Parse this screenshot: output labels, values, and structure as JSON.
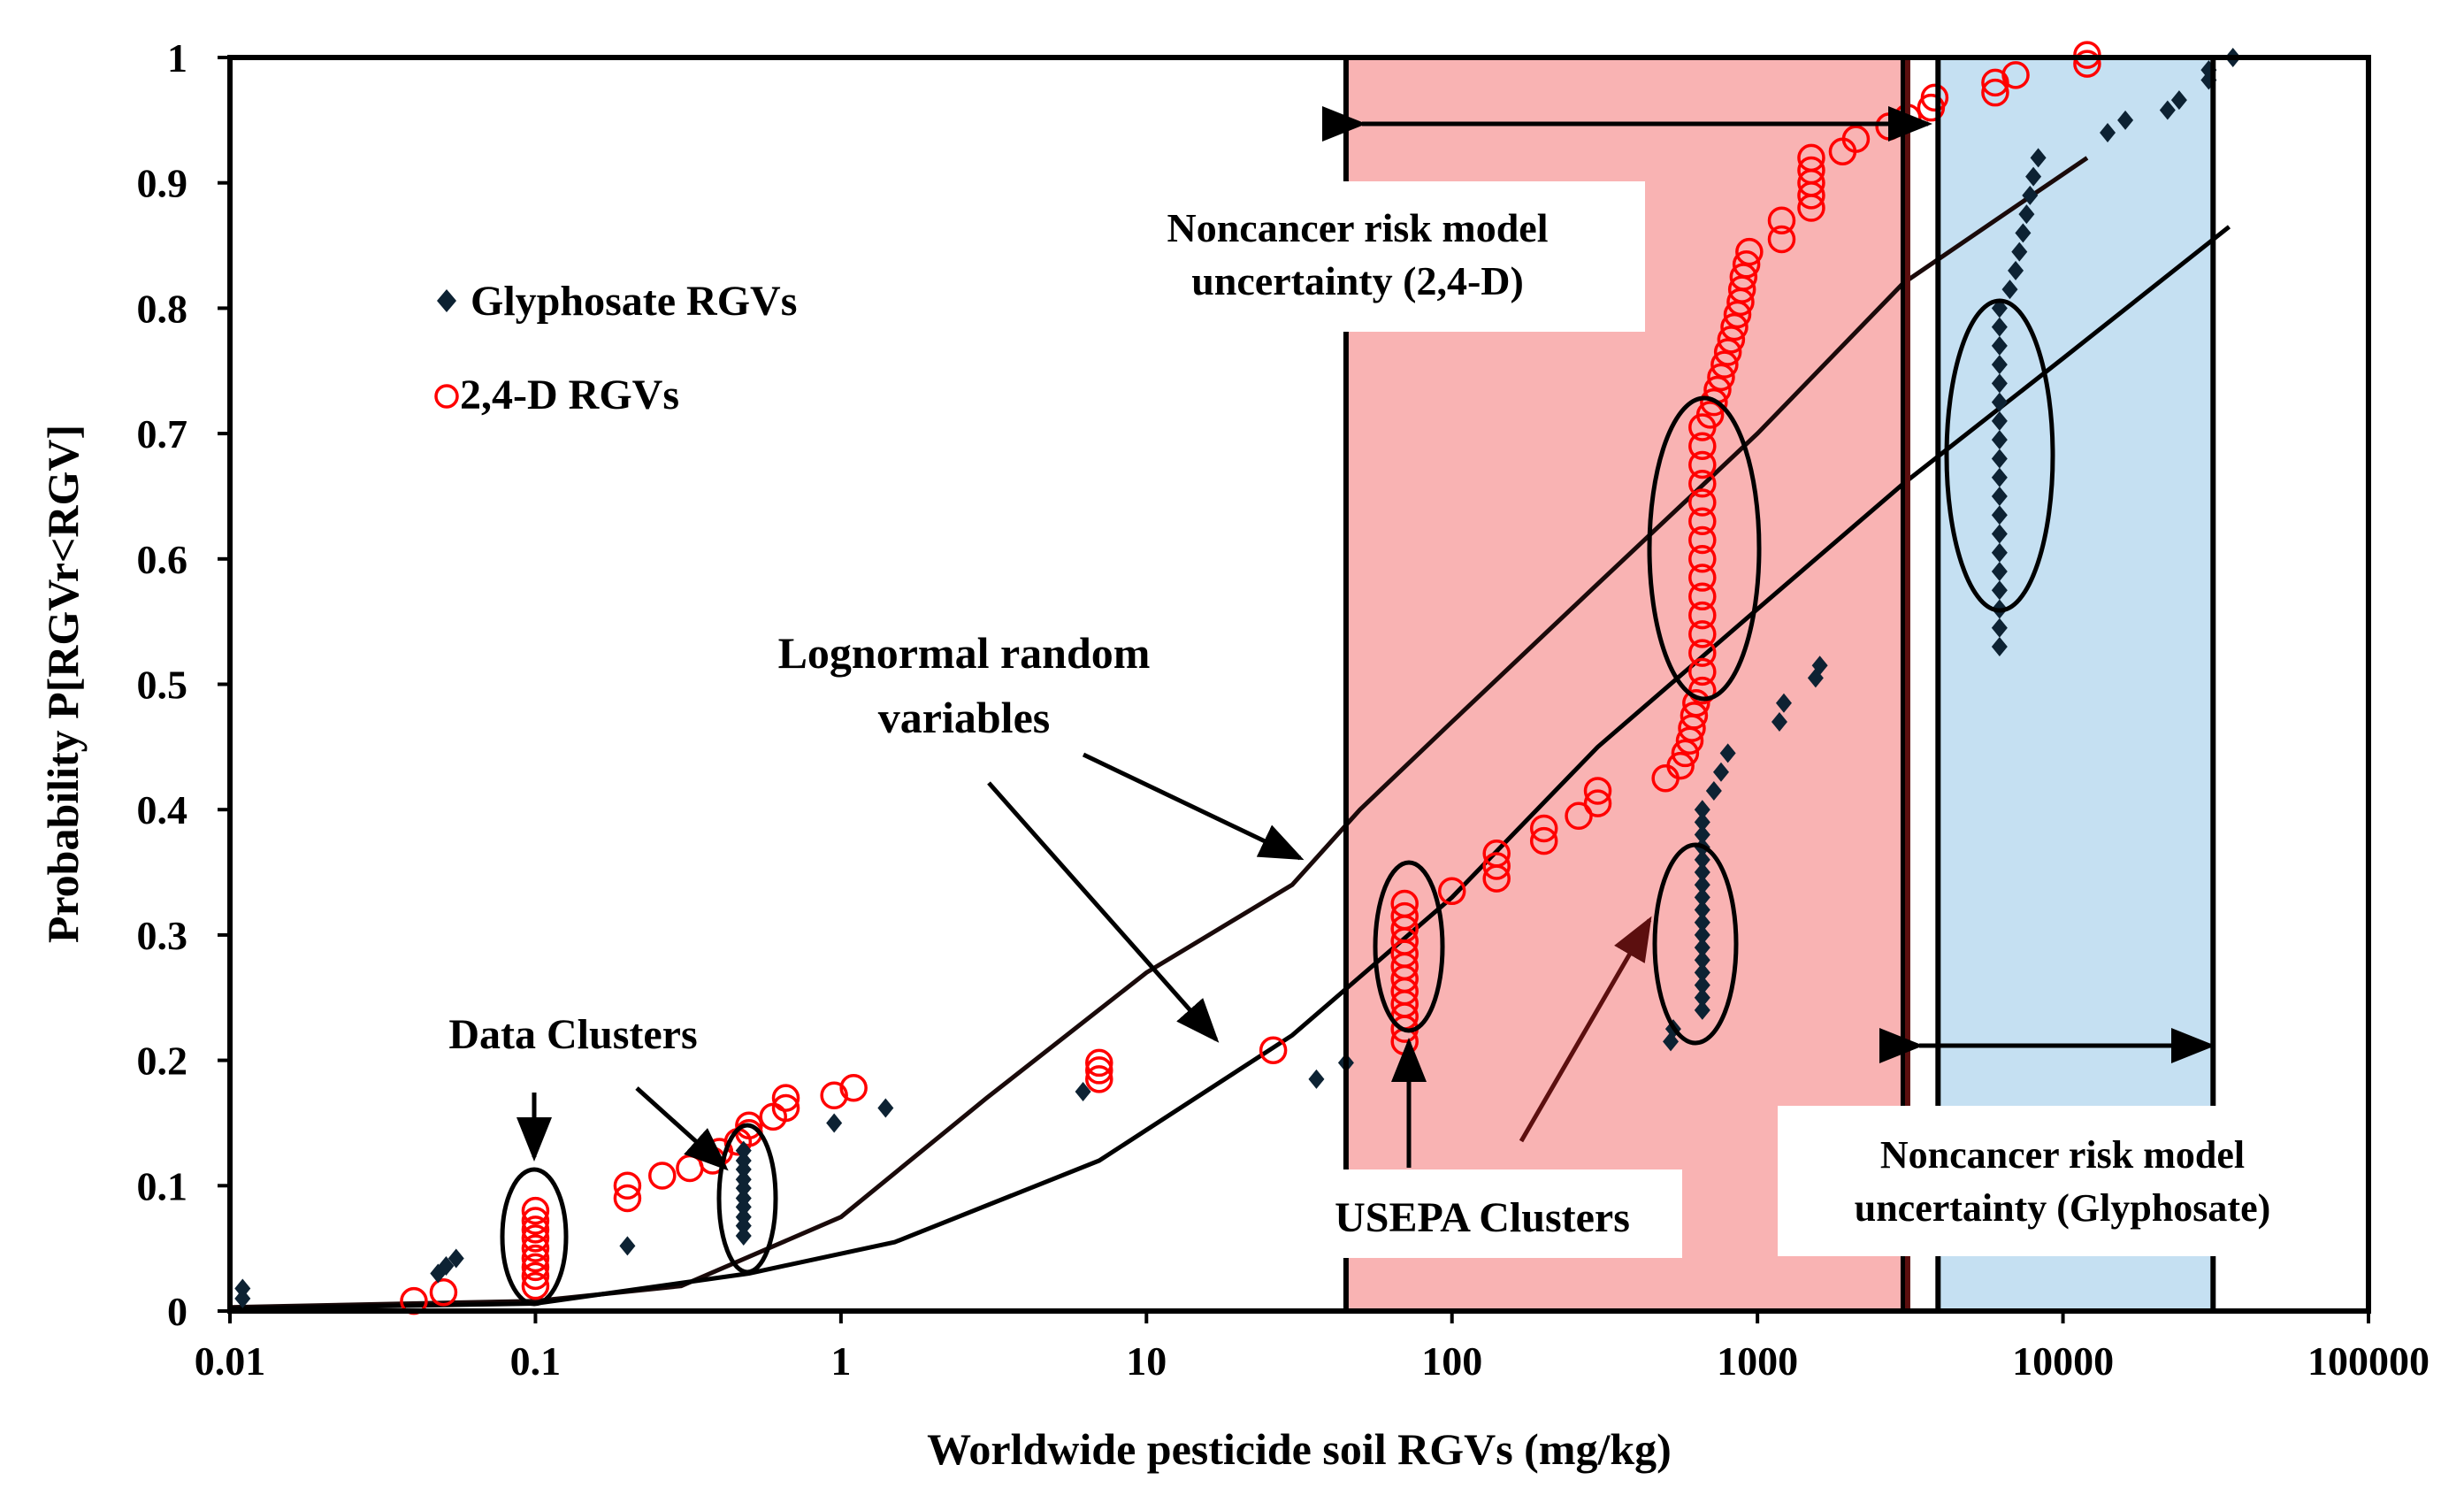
{
  "chart_data": {
    "type": "scatter",
    "title": "",
    "xlabel": "Worldwide pesticide soil RGVs (mg/kg)",
    "ylabel": "Probability P[RGVr<RGV]",
    "xscale": "log",
    "xlim": [
      0.01,
      100000
    ],
    "ylim": [
      0,
      1
    ],
    "x_ticks": [
      0.01,
      0.1,
      1,
      10,
      100,
      1000,
      10000,
      100000
    ],
    "x_tick_labels": [
      "0.01",
      "0.1",
      "1",
      "10",
      "100",
      "1000",
      "10000",
      "100000"
    ],
    "y_ticks": [
      0,
      0.1,
      0.2,
      0.3,
      0.4,
      0.5,
      0.6,
      0.7,
      0.8,
      0.9,
      1
    ],
    "y_tick_labels": [
      "0",
      "0.1",
      "0.2",
      "0.3",
      "0.4",
      "0.5",
      "0.6",
      "0.7",
      "0.8",
      "0.9",
      "1"
    ],
    "legend": {
      "placement": "upper-left",
      "glyphosate": "Glyphosate RGVs",
      "d24": "2,4-D RGVs"
    },
    "colors": {
      "glyphosate": "#0d2233",
      "d24": "#ff0000",
      "red_band": "#f9b3b3",
      "blue_band": "#c5e0f2",
      "curve": "#000000",
      "arrow_dark": "#5c0f0f"
    },
    "bands": [
      {
        "name": "2,4-D noncancer uncertainty",
        "x_from": 45,
        "x_to": 3000
      },
      {
        "name": "Glyphosate noncancer uncertainty",
        "x_from": 3900,
        "x_to": 31000
      }
    ],
    "series": [
      {
        "name": "Glyphosate RGVs",
        "points": [
          [
            0.011,
            0.01
          ],
          [
            0.011,
            0.018
          ],
          [
            0.048,
            0.03
          ],
          [
            0.051,
            0.036
          ],
          [
            0.055,
            0.042
          ],
          [
            0.2,
            0.052
          ],
          [
            0.48,
            0.06
          ],
          [
            0.48,
            0.068
          ],
          [
            0.48,
            0.075
          ],
          [
            0.48,
            0.083
          ],
          [
            0.48,
            0.09
          ],
          [
            0.48,
            0.098
          ],
          [
            0.48,
            0.105
          ],
          [
            0.48,
            0.113
          ],
          [
            0.48,
            0.12
          ],
          [
            0.48,
            0.128
          ],
          [
            0.95,
            0.15
          ],
          [
            1.4,
            0.162
          ],
          [
            6.2,
            0.175
          ],
          [
            36,
            0.185
          ],
          [
            45,
            0.198
          ],
          [
            520,
            0.215
          ],
          [
            530,
            0.225
          ],
          [
            660,
            0.24
          ],
          [
            660,
            0.25
          ],
          [
            660,
            0.26
          ],
          [
            660,
            0.27
          ],
          [
            660,
            0.28
          ],
          [
            660,
            0.29
          ],
          [
            660,
            0.3
          ],
          [
            660,
            0.31
          ],
          [
            660,
            0.32
          ],
          [
            660,
            0.33
          ],
          [
            660,
            0.34
          ],
          [
            660,
            0.35
          ],
          [
            660,
            0.36
          ],
          [
            660,
            0.37
          ],
          [
            660,
            0.38
          ],
          [
            660,
            0.39
          ],
          [
            660,
            0.4
          ],
          [
            720,
            0.415
          ],
          [
            760,
            0.43
          ],
          [
            800,
            0.445
          ],
          [
            1180,
            0.47
          ],
          [
            1220,
            0.485
          ],
          [
            1550,
            0.505
          ],
          [
            1600,
            0.515
          ],
          [
            6200,
            0.53
          ],
          [
            6200,
            0.545
          ],
          [
            6200,
            0.56
          ],
          [
            6200,
            0.575
          ],
          [
            6200,
            0.59
          ],
          [
            6200,
            0.605
          ],
          [
            6200,
            0.62
          ],
          [
            6200,
            0.635
          ],
          [
            6200,
            0.65
          ],
          [
            6200,
            0.665
          ],
          [
            6200,
            0.68
          ],
          [
            6200,
            0.695
          ],
          [
            6200,
            0.71
          ],
          [
            6200,
            0.725
          ],
          [
            6200,
            0.74
          ],
          [
            6200,
            0.755
          ],
          [
            6200,
            0.77
          ],
          [
            6200,
            0.785
          ],
          [
            6200,
            0.8
          ],
          [
            6700,
            0.815
          ],
          [
            7000,
            0.83
          ],
          [
            7200,
            0.845
          ],
          [
            7400,
            0.86
          ],
          [
            7600,
            0.875
          ],
          [
            7800,
            0.89
          ],
          [
            8000,
            0.905
          ],
          [
            8300,
            0.92
          ],
          [
            14000,
            0.94
          ],
          [
            16000,
            0.95
          ],
          [
            22000,
            0.958
          ],
          [
            24000,
            0.966
          ],
          [
            30000,
            0.982
          ],
          [
            30000,
            0.99
          ],
          [
            36000,
            1.0
          ]
        ]
      },
      {
        "name": "2,4-D RGVs",
        "points": [
          [
            0.04,
            0.008
          ],
          [
            0.05,
            0.015
          ],
          [
            0.1,
            0.02
          ],
          [
            0.1,
            0.028
          ],
          [
            0.1,
            0.035
          ],
          [
            0.1,
            0.042
          ],
          [
            0.1,
            0.05
          ],
          [
            0.1,
            0.058
          ],
          [
            0.1,
            0.065
          ],
          [
            0.1,
            0.072
          ],
          [
            0.1,
            0.08
          ],
          [
            0.2,
            0.09
          ],
          [
            0.2,
            0.1
          ],
          [
            0.26,
            0.108
          ],
          [
            0.32,
            0.114
          ],
          [
            0.38,
            0.12
          ],
          [
            0.4,
            0.127
          ],
          [
            0.46,
            0.135
          ],
          [
            0.5,
            0.142
          ],
          [
            0.5,
            0.148
          ],
          [
            0.6,
            0.155
          ],
          [
            0.66,
            0.162
          ],
          [
            0.66,
            0.17
          ],
          [
            0.95,
            0.172
          ],
          [
            1.1,
            0.178
          ],
          [
            7,
            0.185
          ],
          [
            7,
            0.192
          ],
          [
            7,
            0.198
          ],
          [
            26,
            0.208
          ],
          [
            70,
            0.215
          ],
          [
            70,
            0.225
          ],
          [
            70,
            0.235
          ],
          [
            70,
            0.245
          ],
          [
            70,
            0.255
          ],
          [
            70,
            0.265
          ],
          [
            70,
            0.275
          ],
          [
            70,
            0.285
          ],
          [
            70,
            0.295
          ],
          [
            70,
            0.305
          ],
          [
            70,
            0.315
          ],
          [
            70,
            0.325
          ],
          [
            100,
            0.335
          ],
          [
            140,
            0.345
          ],
          [
            140,
            0.355
          ],
          [
            140,
            0.365
          ],
          [
            200,
            0.375
          ],
          [
            200,
            0.385
          ],
          [
            260,
            0.395
          ],
          [
            300,
            0.405
          ],
          [
            300,
            0.415
          ],
          [
            500,
            0.425
          ],
          [
            560,
            0.435
          ],
          [
            580,
            0.445
          ],
          [
            600,
            0.455
          ],
          [
            610,
            0.465
          ],
          [
            620,
            0.475
          ],
          [
            630,
            0.485
          ],
          [
            660,
            0.495
          ],
          [
            660,
            0.51
          ],
          [
            660,
            0.525
          ],
          [
            660,
            0.54
          ],
          [
            660,
            0.555
          ],
          [
            660,
            0.57
          ],
          [
            660,
            0.585
          ],
          [
            660,
            0.6
          ],
          [
            660,
            0.615
          ],
          [
            660,
            0.63
          ],
          [
            660,
            0.645
          ],
          [
            660,
            0.66
          ],
          [
            660,
            0.675
          ],
          [
            660,
            0.69
          ],
          [
            660,
            0.705
          ],
          [
            700,
            0.715
          ],
          [
            720,
            0.725
          ],
          [
            740,
            0.735
          ],
          [
            760,
            0.745
          ],
          [
            780,
            0.755
          ],
          [
            800,
            0.765
          ],
          [
            820,
            0.775
          ],
          [
            840,
            0.785
          ],
          [
            860,
            0.795
          ],
          [
            880,
            0.805
          ],
          [
            890,
            0.815
          ],
          [
            900,
            0.825
          ],
          [
            920,
            0.835
          ],
          [
            940,
            0.845
          ],
          [
            1200,
            0.855
          ],
          [
            1200,
            0.87
          ],
          [
            1500,
            0.88
          ],
          [
            1500,
            0.89
          ],
          [
            1500,
            0.9
          ],
          [
            1500,
            0.91
          ],
          [
            1500,
            0.92
          ],
          [
            1900,
            0.925
          ],
          [
            2100,
            0.935
          ],
          [
            2700,
            0.945
          ],
          [
            3100,
            0.952
          ],
          [
            3700,
            0.96
          ],
          [
            3800,
            0.968
          ],
          [
            6000,
            0.972
          ],
          [
            6000,
            0.98
          ],
          [
            7000,
            0.986
          ],
          [
            12000,
            0.995
          ],
          [
            12000,
            1.002
          ]
        ]
      },
      {
        "name": "Lognormal (upper)",
        "points": [
          [
            0.01,
            0.003
          ],
          [
            0.1,
            0.008
          ],
          [
            0.3,
            0.02
          ],
          [
            1,
            0.075
          ],
          [
            3,
            0.17
          ],
          [
            10,
            0.27
          ],
          [
            30,
            0.34
          ],
          [
            50,
            0.4
          ],
          [
            100,
            0.47
          ],
          [
            300,
            0.58
          ],
          [
            1000,
            0.7
          ],
          [
            3000,
            0.82
          ],
          [
            6000,
            0.87
          ],
          [
            12000,
            0.92
          ]
        ]
      },
      {
        "name": "Lognormal (lower)",
        "points": [
          [
            0.01,
            0.002
          ],
          [
            0.1,
            0.006
          ],
          [
            0.5,
            0.03
          ],
          [
            1.5,
            0.055
          ],
          [
            7,
            0.12
          ],
          [
            30,
            0.22
          ],
          [
            100,
            0.33
          ],
          [
            300,
            0.45
          ],
          [
            1000,
            0.56
          ],
          [
            3000,
            0.66
          ],
          [
            10000,
            0.76
          ],
          [
            35000,
            0.865
          ]
        ]
      }
    ],
    "annotations": {
      "noncancer_24d": [
        "Noncancer risk model",
        "uncertainty (2,4-D)"
      ],
      "noncancer_gly": [
        "Noncancer risk model",
        "uncertainty (Glyphosate)"
      ],
      "lognormal": [
        "Lognormal random",
        "variables"
      ],
      "data_clusters": "Data Clusters",
      "usepa_clusters": "USEPA Clusters"
    }
  }
}
